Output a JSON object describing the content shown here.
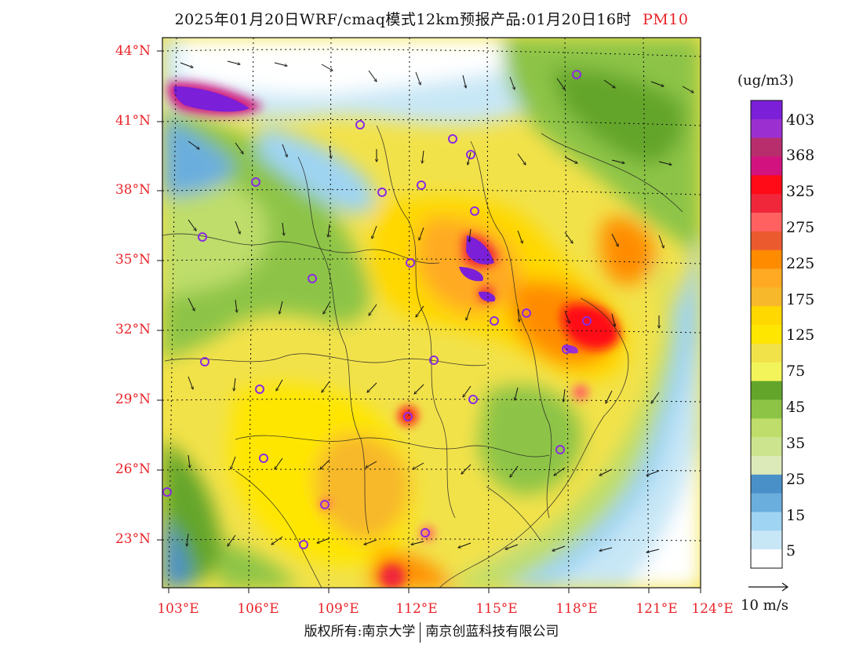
{
  "title": {
    "main": "2025年01月20日WRF/cmaq模式12km预报产品:01月20日16时",
    "pollutant": "PM10"
  },
  "map": {
    "lat_labels": [
      "44°N",
      "41°N",
      "38°N",
      "35°N",
      "32°N",
      "29°N",
      "26°N",
      "23°N"
    ],
    "lon_labels": [
      "103°E",
      "106°E",
      "109°E",
      "112°E",
      "115°E",
      "118°E",
      "121°E",
      "124°E"
    ]
  },
  "legend": {
    "unit": "(ug/m3)",
    "labels": [
      "403",
      "368",
      "325",
      "275",
      "225",
      "175",
      "125",
      "75",
      "45",
      "35",
      "25",
      "15",
      "5"
    ],
    "colors": [
      "#7b1fd8",
      "#9b2fd0",
      "#b82d6c",
      "#d2127e",
      "#ff0a17",
      "#f0273a",
      "#ff6160",
      "#ea5a2e",
      "#ff8c00",
      "#ffaa22",
      "#f7b82c",
      "#ffd800",
      "#ffe600",
      "#f2e24a",
      "#f2f45a",
      "#63a52b",
      "#8dc446",
      "#bedd6a",
      "#cde48e",
      "#dce9b9",
      "#4a90c8",
      "#6aaede",
      "#9fd4f2",
      "#c8e7f6",
      "#ffffff"
    ]
  },
  "wind_reference": {
    "label": "10 m/s"
  },
  "footer": {
    "copyright": "版权所有:南京大学",
    "company": "南京创蓝科技有限公司"
  },
  "colors": {
    "accent_red": "#e8242a"
  }
}
